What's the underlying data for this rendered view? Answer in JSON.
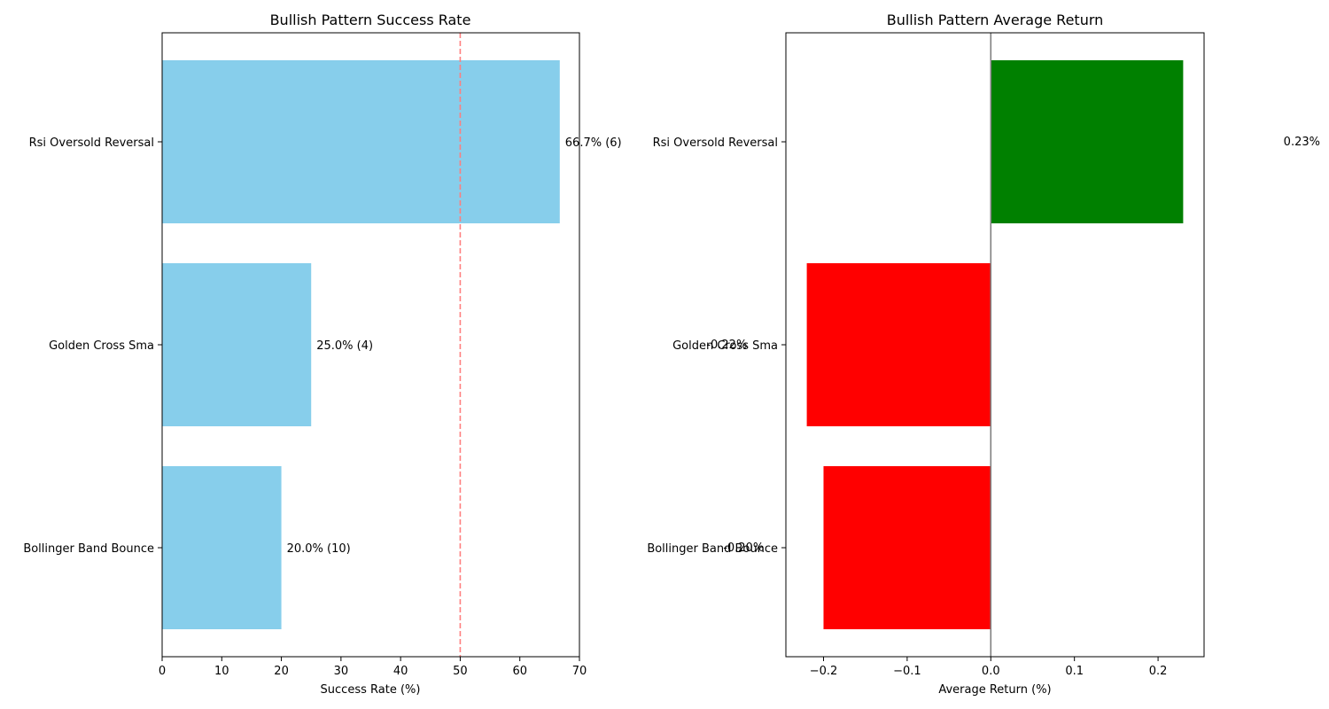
{
  "chart_data": [
    {
      "type": "bar",
      "orientation": "horizontal",
      "title": "Bullish Pattern Success Rate",
      "xlabel": "Success Rate (%)",
      "ylabel": "",
      "categories": [
        "Rsi Oversold Reversal",
        "Golden Cross Sma",
        "Bollinger Band Bounce"
      ],
      "values": [
        66.7,
        25.0,
        20.0
      ],
      "counts": [
        6,
        4,
        10
      ],
      "data_labels": [
        "66.7% (6)",
        "25.0% (4)",
        "20.0% (10)"
      ],
      "xlim": [
        0,
        70
      ],
      "xticks": [
        0,
        10,
        20,
        30,
        40,
        50,
        60,
        70
      ],
      "xtick_labels": [
        "0",
        "10",
        "20",
        "30",
        "40",
        "50",
        "60",
        "70"
      ],
      "reference_line": {
        "x": 50,
        "style": "dashed",
        "color": "#ff7f7f"
      },
      "bar_color": "#87ceeb",
      "grid": false
    },
    {
      "type": "bar",
      "orientation": "horizontal",
      "title": "Bullish Pattern Average Return",
      "xlabel": "Average Return (%)",
      "ylabel": "",
      "categories": [
        "Rsi Oversold Reversal",
        "Golden Cross Sma",
        "Bollinger Band Bounce"
      ],
      "values": [
        0.23,
        -0.22,
        -0.2
      ],
      "data_labels": [
        "0.23%",
        "-0.22%",
        "-0.20%"
      ],
      "xlim": [
        -0.245,
        0.255
      ],
      "xticks": [
        -0.2,
        -0.1,
        0.0,
        0.1,
        0.2
      ],
      "xtick_labels": [
        "−0.2",
        "−0.1",
        "0.0",
        "0.1",
        "0.2"
      ],
      "reference_line": {
        "x": 0,
        "style": "solid",
        "color": "#808080"
      },
      "positive_color": "#008000",
      "negative_color": "#ff0000",
      "grid": false
    }
  ]
}
